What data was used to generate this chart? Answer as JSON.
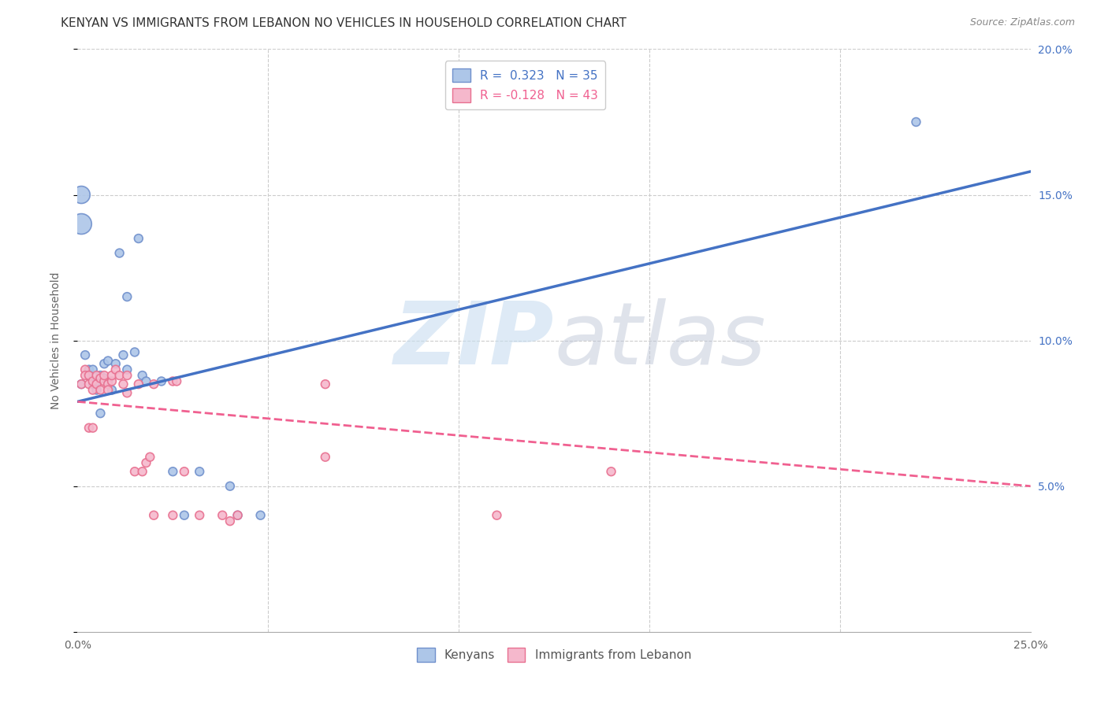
{
  "title": "KENYAN VS IMMIGRANTS FROM LEBANON NO VEHICLES IN HOUSEHOLD CORRELATION CHART",
  "source": "Source: ZipAtlas.com",
  "ylabel": "No Vehicles in Household",
  "watermark": "ZIPatlas",
  "xlim": [
    0.0,
    0.25
  ],
  "ylim": [
    0.0,
    0.2
  ],
  "xticks": [
    0.0,
    0.05,
    0.1,
    0.15,
    0.2,
    0.25
  ],
  "yticks": [
    0.0,
    0.05,
    0.1,
    0.15,
    0.2
  ],
  "xtick_labels": [
    "0.0%",
    "",
    "",
    "",
    "",
    "25.0%"
  ],
  "ytick_labels_right": [
    "",
    "5.0%",
    "10.0%",
    "15.0%",
    "20.0%"
  ],
  "legend_entries": [
    {
      "label": "R =  0.323   N = 35"
    },
    {
      "label": "R = -0.128   N = 43"
    }
  ],
  "legend_bottom": [
    "Kenyans",
    "Immigrants from Lebanon"
  ],
  "blue_color": "#4472c4",
  "pink_color": "#f06090",
  "blue_scatter_color": "#adc6e8",
  "pink_scatter_color": "#f5b8cc",
  "blue_edge_color": "#7090cc",
  "pink_edge_color": "#e87090",
  "kenyan_x": [
    0.001,
    0.001,
    0.002,
    0.003,
    0.003,
    0.004,
    0.004,
    0.005,
    0.005,
    0.006,
    0.006,
    0.007,
    0.007,
    0.008,
    0.008,
    0.009,
    0.01,
    0.011,
    0.012,
    0.013,
    0.015,
    0.016,
    0.017,
    0.018,
    0.022,
    0.025,
    0.028,
    0.032,
    0.04,
    0.042,
    0.048,
    0.22,
    0.001,
    0.003,
    0.013
  ],
  "kenyan_y": [
    0.14,
    0.085,
    0.095,
    0.09,
    0.088,
    0.09,
    0.085,
    0.086,
    0.083,
    0.075,
    0.088,
    0.092,
    0.087,
    0.093,
    0.086,
    0.083,
    0.092,
    0.13,
    0.095,
    0.115,
    0.096,
    0.135,
    0.088,
    0.086,
    0.086,
    0.055,
    0.04,
    0.055,
    0.05,
    0.04,
    0.04,
    0.175,
    0.15,
    0.088,
    0.09
  ],
  "kenyan_size": [
    350,
    60,
    60,
    60,
    60,
    60,
    60,
    60,
    60,
    60,
    60,
    60,
    60,
    60,
    60,
    60,
    60,
    60,
    60,
    60,
    60,
    60,
    60,
    60,
    60,
    60,
    60,
    60,
    60,
    60,
    60,
    60,
    250,
    60,
    60
  ],
  "lebanon_x": [
    0.001,
    0.002,
    0.002,
    0.003,
    0.003,
    0.004,
    0.004,
    0.005,
    0.005,
    0.006,
    0.006,
    0.007,
    0.007,
    0.008,
    0.008,
    0.009,
    0.009,
    0.01,
    0.011,
    0.012,
    0.013,
    0.013,
    0.015,
    0.016,
    0.017,
    0.018,
    0.019,
    0.02,
    0.025,
    0.026,
    0.028,
    0.032,
    0.04,
    0.042,
    0.065,
    0.11,
    0.14,
    0.065,
    0.025,
    0.038,
    0.003,
    0.004,
    0.02
  ],
  "lebanon_y": [
    0.085,
    0.09,
    0.088,
    0.085,
    0.088,
    0.083,
    0.086,
    0.085,
    0.088,
    0.083,
    0.087,
    0.086,
    0.088,
    0.085,
    0.083,
    0.086,
    0.088,
    0.09,
    0.088,
    0.085,
    0.082,
    0.088,
    0.055,
    0.085,
    0.055,
    0.058,
    0.06,
    0.085,
    0.086,
    0.086,
    0.055,
    0.04,
    0.038,
    0.04,
    0.085,
    0.04,
    0.055,
    0.06,
    0.04,
    0.04,
    0.07,
    0.07,
    0.04
  ],
  "lebanon_size": [
    60,
    60,
    60,
    60,
    60,
    60,
    60,
    60,
    60,
    60,
    60,
    60,
    60,
    60,
    60,
    60,
    60,
    60,
    60,
    60,
    60,
    60,
    60,
    60,
    60,
    60,
    60,
    60,
    60,
    60,
    60,
    60,
    60,
    60,
    60,
    60,
    60,
    60,
    60,
    60,
    60,
    60,
    60
  ],
  "blue_trend_x": [
    0.0,
    0.25
  ],
  "blue_trend_y": [
    0.079,
    0.158
  ],
  "pink_trend_x": [
    0.0,
    0.25
  ],
  "pink_trend_y": [
    0.079,
    0.05
  ],
  "background_color": "#ffffff",
  "grid_color": "#cccccc",
  "title_fontsize": 11,
  "axis_fontsize": 10,
  "tick_fontsize": 10
}
